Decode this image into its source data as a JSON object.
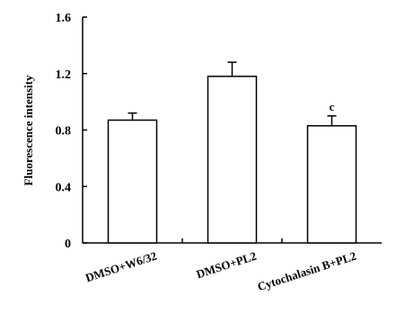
{
  "chart_data": {
    "type": "bar",
    "title": "",
    "xlabel": "",
    "ylabel": "Fluorescence intensity",
    "categories": [
      "DMSO+W6/32",
      "DMSO+PL2",
      "Cytochalasin B+PL2"
    ],
    "values": [
      0.87,
      1.18,
      0.83
    ],
    "errors": [
      0.05,
      0.1,
      0.07
    ],
    "annotations": [
      "",
      "",
      "c"
    ],
    "ylim": [
      0,
      1.6
    ],
    "yticks": [
      0,
      0.4,
      0.8,
      1.2,
      1.6
    ],
    "ytick_labels": [
      "0",
      "0.4",
      "0.8",
      "1.2",
      "1.6"
    ],
    "grid": false,
    "bar_fill": "#ffffff",
    "bar_stroke": "#000000"
  }
}
